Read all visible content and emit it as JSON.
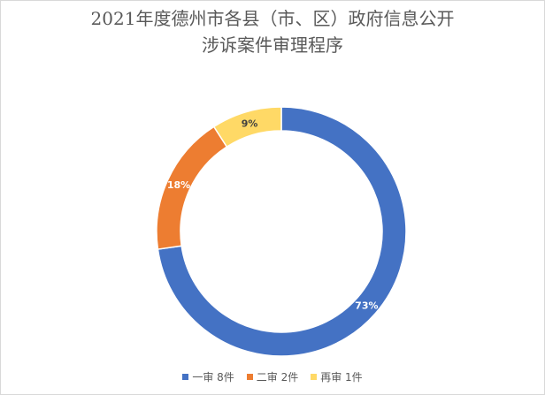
{
  "chart_data": {
    "type": "pie",
    "variant": "donut",
    "title_lines": [
      "2021年度德州市各县（市、区）政府信息公开",
      "涉诉案件审理程序"
    ],
    "categories": [
      "一审 8件",
      "二审 2件",
      "再审 1件"
    ],
    "values": [
      8,
      2,
      1
    ],
    "percent_labels": [
      "73%",
      "18%",
      "9%"
    ],
    "colors": [
      "#4472C4",
      "#ED7D31",
      "#FFD966"
    ],
    "legend_position": "bottom"
  }
}
